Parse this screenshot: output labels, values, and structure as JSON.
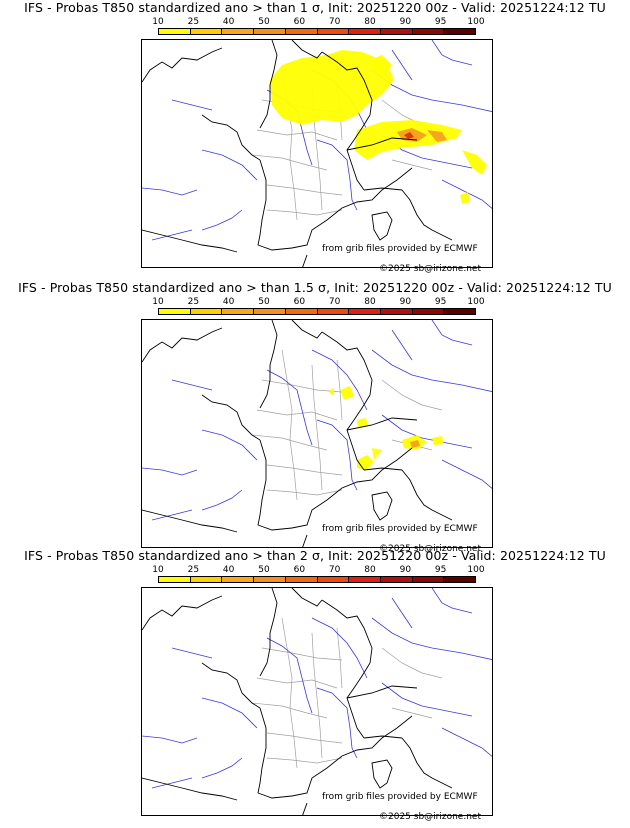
{
  "panels": [
    {
      "title": "IFS - Probas T850  standardized ano > than 1 σ, Init: 20251220 00z - Valid: 20251224:12 TU",
      "threshold_sigma": "1",
      "source_credit": "from grib files provided by ECMWF",
      "copyright": "©2025 sb@irizone.net"
    },
    {
      "title": "IFS - Probas T850  standardized ano > than 1.5 σ, Init: 20251220 00z - Valid: 20251224:12 TU",
      "threshold_sigma": "1.5",
      "source_credit": "from grib files provided by ECMWF",
      "copyright": "©2025 sb@irizone.net"
    },
    {
      "title": "IFS - Probas T850  standardized ano > than 2 σ, Init: 20251220 00z - Valid: 20251224:12 TU",
      "threshold_sigma": "2",
      "source_credit": "from grib files provided by ECMWF",
      "copyright": "©2025 sb@irizone.net"
    }
  ],
  "colorscale": {
    "labels": [
      "10",
      "25",
      "40",
      "50",
      "60",
      "70",
      "80",
      "90",
      "95",
      "100"
    ],
    "colors": [
      "#ffff00",
      "#ffd000",
      "#f8a81e",
      "#f49020",
      "#f06a10",
      "#ee4a10",
      "#e02010",
      "#b01010",
      "#8a0808",
      "#5a0000"
    ]
  },
  "map_colors": {
    "coast": "#000000",
    "rivers": "#3a3ad8",
    "borders": "#000000",
    "regions": "#a0a0a0",
    "prob_low": "#ffff00",
    "prob_mid": "#f4a020",
    "prob_high": "#e03010"
  }
}
